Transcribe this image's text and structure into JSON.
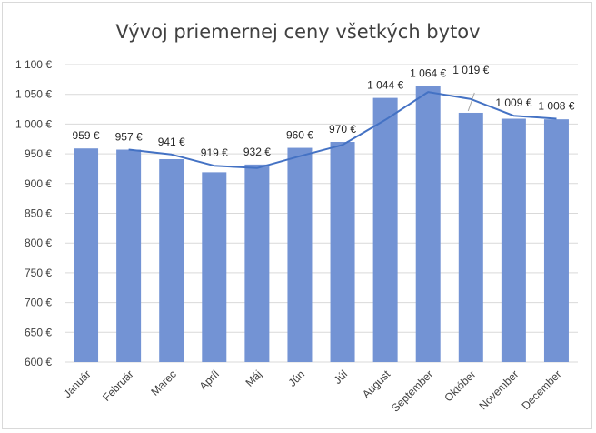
{
  "chart_data": {
    "type": "bar",
    "title": "Vývoj priemernej ceny všetkých bytov",
    "categories": [
      "Január",
      "Február",
      "Marec",
      "Apríl",
      "Máj",
      "Jún",
      "Júl",
      "August",
      "September",
      "Október",
      "November",
      "December"
    ],
    "series": [
      {
        "type": "bar",
        "values": [
          959,
          957,
          941,
          919,
          932,
          960,
          970,
          1044,
          1064,
          1019,
          1009,
          1008
        ],
        "data_labels": [
          "959 €",
          "957 €",
          "941 €",
          "919 €",
          "932 €",
          "960 €",
          "970 €",
          "1 044 €",
          "1 064 €",
          "1 019 €",
          "1 009 €",
          "1 008 €"
        ],
        "color": "#7393d4"
      },
      {
        "type": "line",
        "values": [
          null,
          957,
          949,
          930,
          926,
          946,
          965,
          1007,
          1054,
          1042,
          1014,
          1009
        ],
        "color": "#4472c4"
      }
    ],
    "ylim": [
      600,
      1100
    ],
    "y_ticks": [
      600,
      650,
      700,
      750,
      800,
      850,
      900,
      950,
      1000,
      1050,
      1100
    ],
    "y_tick_labels": [
      "600 €",
      "650 €",
      "700 €",
      "750 €",
      "800 €",
      "850 €",
      "900 €",
      "950 €",
      "1 000 €",
      "1 050 €",
      "1 100 €"
    ],
    "grid": true,
    "legend": "none"
  }
}
